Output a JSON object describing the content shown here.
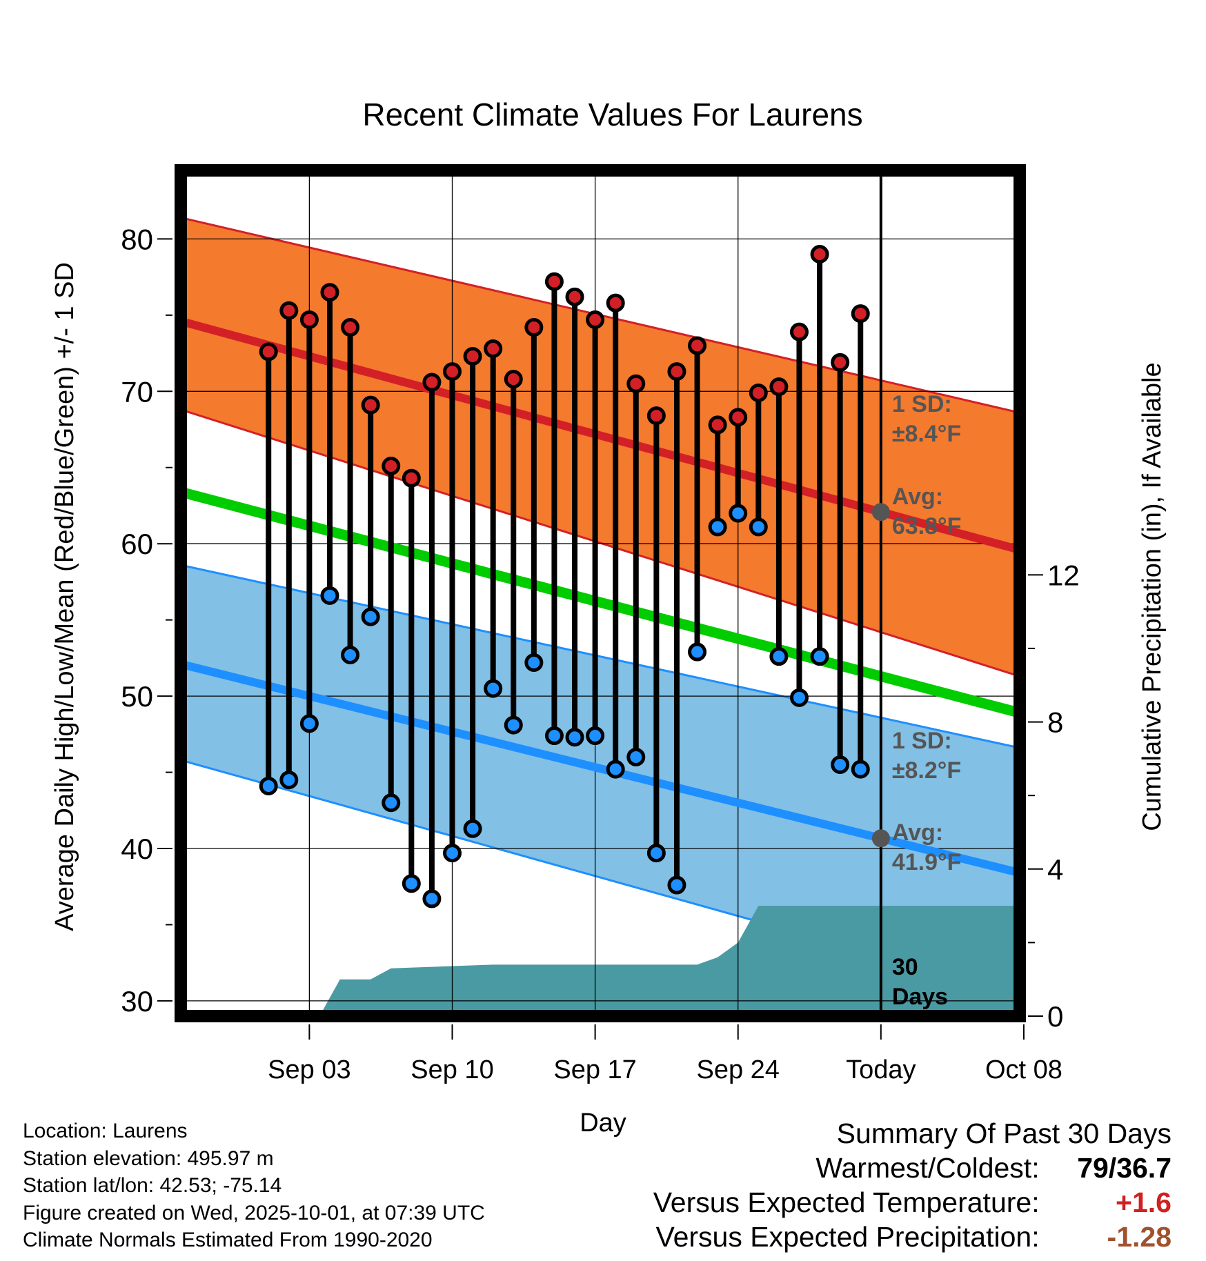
{
  "chart_data": {
    "type": "line",
    "title": "Recent Climate Values For Laurens",
    "xlabel": "Day",
    "ylabel": "Average Daily High/Low/Mean (Red/Blue/Green) +/- 1 SD",
    "y2label": "Cumulative Precipitation (in), If Available",
    "x_range_days": [
      -34.3,
      6.8
    ],
    "ylim": [
      29,
      84.5
    ],
    "y2lim": [
      0,
      23
    ],
    "x_ticks": [
      {
        "day": -28,
        "label": "Sep 03"
      },
      {
        "day": -21,
        "label": "Sep 10"
      },
      {
        "day": -14,
        "label": "Sep 17"
      },
      {
        "day": -7,
        "label": "Sep 24"
      },
      {
        "day": 0,
        "label": "Today"
      },
      {
        "day": 7,
        "label": "Oct 08"
      }
    ],
    "y_ticks": [
      30,
      40,
      50,
      60,
      70,
      80
    ],
    "y2_ticks": [
      0,
      4,
      8,
      12
    ],
    "normals": {
      "x": [
        -34.3,
        6.8
      ],
      "avg_high": [
        74.6,
        59.6
      ],
      "high_upper": [
        81.4,
        68.6
      ],
      "high_lower": [
        68.8,
        51.3
      ],
      "avg_low": [
        52.1,
        38.4
      ],
      "low_upper": [
        58.6,
        46.6
      ],
      "low_lower": [
        45.8,
        30.4
      ],
      "mean": [
        63.4,
        48.9
      ]
    },
    "daily": {
      "day": [
        -30,
        -29,
        -28,
        -27,
        -26,
        -25,
        -24,
        -23,
        -22,
        -21,
        -20,
        -19,
        -18,
        -17,
        -16,
        -15,
        -14,
        -13,
        -12,
        -11,
        -10,
        -9,
        -8,
        -7,
        -6,
        -5,
        -4,
        -3,
        -2,
        -1
      ],
      "high": [
        72.6,
        75.3,
        74.7,
        76.5,
        74.2,
        69.1,
        65.1,
        64.3,
        70.6,
        71.3,
        72.3,
        72.8,
        70.8,
        74.2,
        77.2,
        76.2,
        74.7,
        75.8,
        70.5,
        68.4,
        71.3,
        73.0,
        67.8,
        68.3,
        69.9,
        70.3,
        73.9,
        79.0,
        71.9,
        75.1
      ],
      "low": [
        44.1,
        44.5,
        48.2,
        56.6,
        52.7,
        55.2,
        43.0,
        37.7,
        36.7,
        39.7,
        41.3,
        50.5,
        48.1,
        52.2,
        47.4,
        47.3,
        47.4,
        45.2,
        46.0,
        39.7,
        37.6,
        52.9,
        61.1,
        62.0,
        61.1,
        52.6,
        49.9,
        52.6,
        45.5,
        45.2
      ]
    },
    "precip": {
      "day": [
        -34.3,
        -27.5,
        -26.5,
        -25,
        -24,
        -19,
        -10,
        -9,
        -8,
        -7,
        -6,
        6.8
      ],
      "cumulative": [
        0,
        0,
        1.0,
        1.0,
        1.3,
        1.4,
        1.4,
        1.4,
        1.6,
        2.0,
        3.0,
        3.0
      ]
    },
    "annotations": {
      "high_sd": "1 SD:",
      "high_sd_value": "±8.4°F",
      "high_avg": "Avg:",
      "high_avg_value": "63.8°F",
      "low_sd": "1 SD:",
      "low_sd_value": "±8.2°F",
      "low_avg": "Avg:",
      "low_avg_value": "41.9°F",
      "days_num": "30",
      "days_word": "Days"
    },
    "colors": {
      "high_band": "#f47a2e",
      "high_line": "#d32027",
      "low_band": "#82c0e6",
      "low_line": "#1e8fff",
      "mean_line": "#00cc00",
      "precip_fill": "#4a9aa3",
      "annotation": "#555555"
    }
  },
  "footer": {
    "location": "Location: Laurens",
    "elevation": "Station elevation: 495.97 m",
    "latlon": "Station lat/lon: 42.53; -75.14",
    "created": "Figure created on Wed, 2025-10-01, at 07:39 UTC",
    "normals": "Climate Normals Estimated From 1990-2020"
  },
  "summary": {
    "heading": "Summary Of Past 30 Days",
    "warmest_coldest_label": "Warmest/Coldest:",
    "warmest_coldest_value": "79/36.7",
    "temp_label": "Versus Expected Temperature:",
    "temp_value": "+1.6",
    "precip_label": "Versus Expected Precipitation:",
    "precip_value": "-1.28"
  }
}
